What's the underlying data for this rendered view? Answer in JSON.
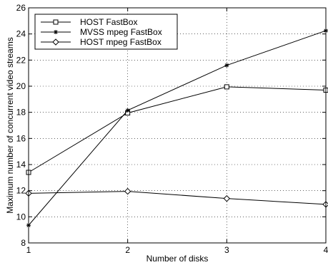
{
  "chart_data": {
    "type": "line",
    "title": "",
    "xlabel": "Number of disks",
    "ylabel": "Maximum number of concurrent video streams",
    "x": [
      1,
      2,
      3,
      4
    ],
    "x_ticks": [
      "1",
      "2",
      "3",
      "4"
    ],
    "y_ticks": [
      "8",
      "10",
      "12",
      "14",
      "16",
      "18",
      "20",
      "22",
      "24",
      "26"
    ],
    "xlim": [
      1,
      4
    ],
    "ylim": [
      8,
      26
    ],
    "grid": true,
    "legend_position": "top-left",
    "series": [
      {
        "name": "HOST FastBox",
        "marker": "square",
        "values": [
          13.4,
          17.95,
          19.95,
          19.7
        ]
      },
      {
        "name": "MVSS mpeg FastBox",
        "marker": "star",
        "values": [
          9.35,
          18.15,
          21.6,
          24.25
        ]
      },
      {
        "name": "HOST mpeg FastBox",
        "marker": "diamond",
        "values": [
          11.8,
          11.95,
          11.4,
          10.95
        ]
      }
    ]
  }
}
